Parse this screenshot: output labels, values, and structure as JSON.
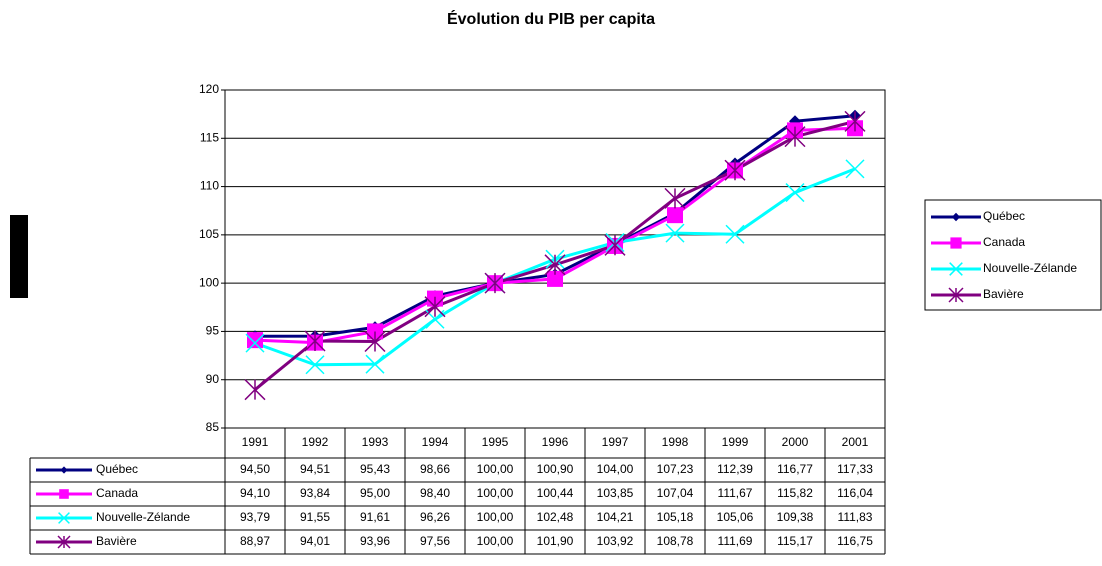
{
  "chart_data": {
    "type": "line",
    "title": "Évolution du PIB per capita",
    "categories": [
      "1991",
      "1992",
      "1993",
      "1994",
      "1995",
      "1996",
      "1997",
      "1998",
      "1999",
      "2000",
      "2001"
    ],
    "series": [
      {
        "name": "Québec",
        "color": "#000080",
        "marker": "diamond",
        "values": [
          94.5,
          94.51,
          95.43,
          98.66,
          100.0,
          100.9,
          104.0,
          107.23,
          112.39,
          116.77,
          117.33
        ],
        "value_labels": [
          "94,50",
          "94,51",
          "95,43",
          "98,66",
          "100,00",
          "100,90",
          "104,00",
          "107,23",
          "112,39",
          "116,77",
          "117,33"
        ]
      },
      {
        "name": "Canada",
        "color": "#ff00ff",
        "marker": "square",
        "values": [
          94.1,
          93.84,
          95.0,
          98.4,
          100.0,
          100.44,
          103.85,
          107.04,
          111.67,
          115.82,
          116.04
        ],
        "value_labels": [
          "94,10",
          "93,84",
          "95,00",
          "98,40",
          "100,00",
          "100,44",
          "103,85",
          "107,04",
          "111,67",
          "115,82",
          "116,04"
        ]
      },
      {
        "name": "Nouvelle-Zélande",
        "color": "#00ffff",
        "marker": "x",
        "values": [
          93.79,
          91.55,
          91.61,
          96.26,
          100.0,
          102.48,
          104.21,
          105.18,
          105.06,
          109.38,
          111.83
        ],
        "value_labels": [
          "93,79",
          "91,55",
          "91,61",
          "96,26",
          "100,00",
          "102,48",
          "104,21",
          "105,18",
          "105,06",
          "109,38",
          "111,83"
        ]
      },
      {
        "name": "Bavière",
        "color": "#800080",
        "marker": "star",
        "values": [
          88.97,
          94.01,
          93.96,
          97.56,
          100.0,
          101.9,
          103.92,
          108.78,
          111.69,
          115.17,
          116.75
        ],
        "value_labels": [
          "88,97",
          "94,01",
          "93,96",
          "97,56",
          "100,00",
          "101,90",
          "103,92",
          "108,78",
          "111,69",
          "115,17",
          "116,75"
        ]
      }
    ],
    "ylim": [
      85,
      120
    ],
    "yticks": [
      85,
      90,
      95,
      100,
      105,
      110,
      115,
      120
    ],
    "grid": true,
    "legend": "right"
  }
}
